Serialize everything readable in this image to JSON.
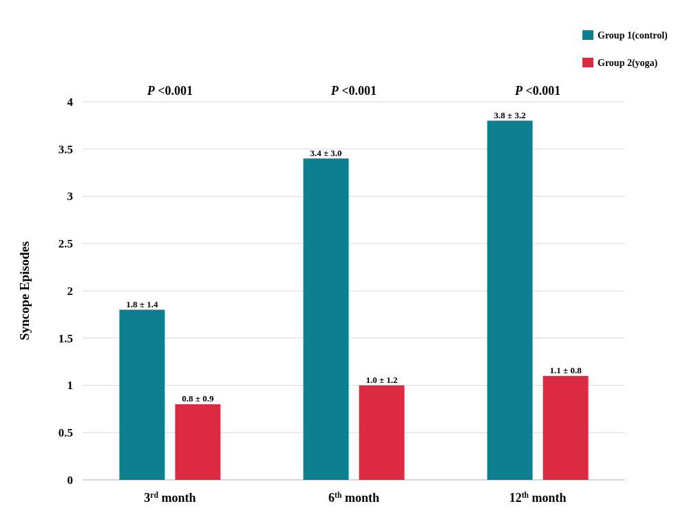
{
  "chart_data": {
    "type": "bar",
    "ylabel": "Syncope Episodes",
    "categories": [
      "3$^{rd}$ month",
      "6$^{th}$ month",
      "12$^{th}$ month"
    ],
    "series": [
      {
        "name": "Group 1(control)",
        "color": "#0e7f8e",
        "values": [
          1.8,
          3.4,
          3.8
        ],
        "value_labels": [
          "1.8 ± 1.4",
          "3.4 ± 3.0",
          "3.8 ± 3.2"
        ]
      },
      {
        "name": "Group 2(yoga)",
        "color": "#dc2a43",
        "values": [
          0.8,
          1.0,
          1.1
        ],
        "value_labels": [
          "0.8 ± 0.9",
          "1.0 ± 1.2",
          "1.1 ± 0.8"
        ]
      }
    ],
    "annotations": [
      "P <0.001",
      "P <0.001",
      "P <0.001"
    ],
    "ylim": [
      0,
      4
    ],
    "yticks": [
      0,
      0.5,
      1,
      1.5,
      2,
      2.5,
      3,
      3.5,
      4
    ],
    "grid": "y",
    "legend": "top right"
  }
}
